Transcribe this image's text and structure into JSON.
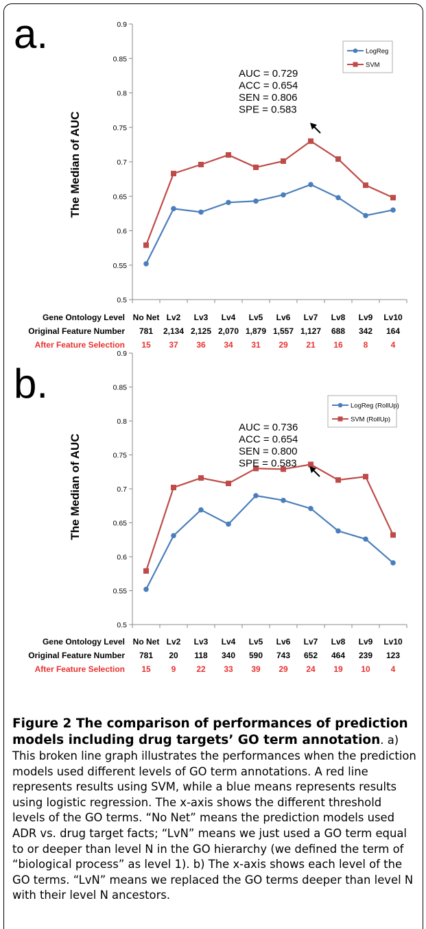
{
  "chart_data": [
    {
      "type": "line",
      "panel_letter": "a.",
      "ylabel": "The Median of AUC",
      "ylim": [
        0.5,
        0.9
      ],
      "yticks": [
        "0.5",
        "0.55",
        "0.6",
        "0.65",
        "0.7",
        "0.75",
        "0.8",
        "0.85",
        "0.9"
      ],
      "grid": false,
      "legend_position": "top-right",
      "categories": [
        "No Net",
        "Lv2",
        "Lv3",
        "Lv4",
        "Lv5",
        "Lv6",
        "Lv7",
        "Lv8",
        "Lv9",
        "Lv10"
      ],
      "series": [
        {
          "name": "LogReg",
          "color": "#4a7ebb",
          "marker": "circle",
          "values": [
            0.552,
            0.632,
            0.627,
            0.641,
            0.643,
            0.652,
            0.667,
            0.648,
            0.622,
            0.63
          ]
        },
        {
          "name": "SVM",
          "color": "#be4b48",
          "marker": "square",
          "values": [
            0.579,
            0.683,
            0.696,
            0.71,
            0.692,
            0.701,
            0.73,
            0.704,
            0.666,
            0.648
          ]
        }
      ],
      "annotation": [
        "AUC = 0.729",
        "ACC = 0.654",
        "SEN = 0.806",
        "SPE = 0.583"
      ],
      "table": {
        "rows": [
          {
            "label": "Gene Ontology Level",
            "color": "#000000",
            "values": [
              "No Net",
              "Lv2",
              "Lv3",
              "Lv4",
              "Lv5",
              "Lv6",
              "Lv7",
              "Lv8",
              "Lv9",
              "Lv10"
            ]
          },
          {
            "label": "Original Feature Number",
            "color": "#000000",
            "values": [
              "781",
              "2,134",
              "2,125",
              "2,070",
              "1,879",
              "1,557",
              "1,127",
              "688",
              "342",
              "164"
            ]
          },
          {
            "label": "After Feature Selection",
            "color": "#e8312f",
            "values": [
              "15",
              "37",
              "36",
              "34",
              "31",
              "29",
              "21",
              "16",
              "8",
              "4"
            ]
          }
        ]
      }
    },
    {
      "type": "line",
      "panel_letter": "b.",
      "ylabel": "The Median of AUC",
      "ylim": [
        0.5,
        0.9
      ],
      "yticks": [
        "0.5",
        "0.55",
        "0.6",
        "0.65",
        "0.7",
        "0.75",
        "0.8",
        "0.85",
        "0.9"
      ],
      "grid": false,
      "legend_position": "top-right",
      "categories": [
        "No Net",
        "Lv2",
        "Lv3",
        "Lv4",
        "Lv5",
        "Lv6",
        "Lv7",
        "Lv8",
        "Lv9",
        "Lv10"
      ],
      "series": [
        {
          "name": "LogReg (RollUp)",
          "color": "#4a7ebb",
          "marker": "circle",
          "values": [
            0.552,
            0.631,
            0.669,
            0.648,
            0.69,
            0.683,
            0.671,
            0.638,
            0.626,
            0.591
          ]
        },
        {
          "name": "SVM (RollUp)",
          "color": "#be4b48",
          "marker": "square",
          "values": [
            0.579,
            0.702,
            0.716,
            0.708,
            0.73,
            0.729,
            0.736,
            0.713,
            0.718,
            0.632
          ]
        }
      ],
      "annotation": [
        "AUC = 0.736",
        "ACC = 0.654",
        "SEN = 0.800",
        "SPE = 0.583"
      ],
      "table": {
        "rows": [
          {
            "label": "Gene Ontology Level",
            "color": "#000000",
            "values": [
              "No Net",
              "Lv2",
              "Lv3",
              "Lv4",
              "Lv5",
              "Lv6",
              "Lv7",
              "Lv8",
              "Lv9",
              "Lv10"
            ]
          },
          {
            "label": "Original Feature Number",
            "color": "#000000",
            "values": [
              "781",
              "20",
              "118",
              "340",
              "590",
              "743",
              "652",
              "464",
              "239",
              "123"
            ]
          },
          {
            "label": "After Feature Selection",
            "color": "#e8312f",
            "values": [
              "15",
              "9",
              "22",
              "33",
              "39",
              "29",
              "24",
              "19",
              "10",
              "4"
            ]
          }
        ]
      }
    }
  ],
  "caption": {
    "title": "Figure 2 The comparison of performances of prediction models including drug targets’ GO term annotation",
    "body": ". a) This broken line graph illustrates the performances when the prediction models used different levels of GO term annotations. A red line represents results using SVM, while a blue means represents results using logistic regression. The x-axis shows the different threshold levels of the GO terms. “No Net” means the prediction models used ADR vs. drug target facts; “LvN” means we just used a GO term equal to or deeper than level N in the GO hierarchy (we defined the term of “biological process” as level 1). b) The x-axis shows each level of the GO terms. “LvN” means we replaced the GO terms deeper than level N with their level N ancestors."
  }
}
